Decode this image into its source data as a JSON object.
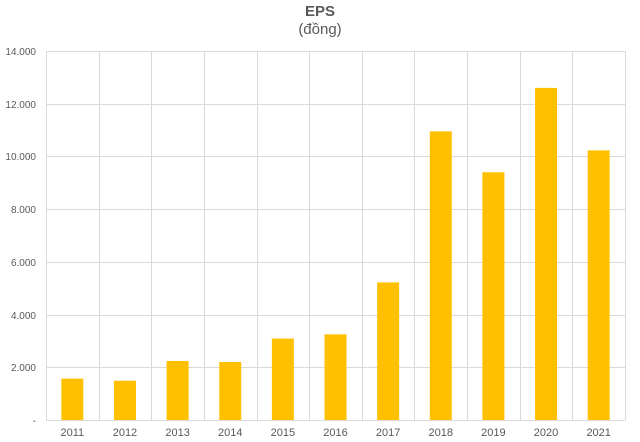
{
  "chart_data": {
    "type": "bar",
    "title": "EPS",
    "subtitle": "(đồng)",
    "categories": [
      "2011",
      "2012",
      "2013",
      "2014",
      "2015",
      "2016",
      "2017",
      "2018",
      "2019",
      "2020",
      "2021"
    ],
    "values": [
      1570,
      1490,
      2240,
      2200,
      3090,
      3250,
      5220,
      10950,
      9400,
      12600,
      10230
    ],
    "ylim": [
      0,
      14000
    ],
    "y_ticks": [
      {
        "value": 0,
        "label": "-"
      },
      {
        "value": 2000,
        "label": "2.000"
      },
      {
        "value": 4000,
        "label": "4.000"
      },
      {
        "value": 6000,
        "label": "6.000"
      },
      {
        "value": 8000,
        "label": "8.000"
      },
      {
        "value": 10000,
        "label": "10.000"
      },
      {
        "value": 12000,
        "label": "12.000"
      },
      {
        "value": 14000,
        "label": "14.000"
      }
    ],
    "grid": true,
    "legend": "none",
    "bar_color": "#FFC000",
    "grid_color": "#D9D9D9"
  }
}
